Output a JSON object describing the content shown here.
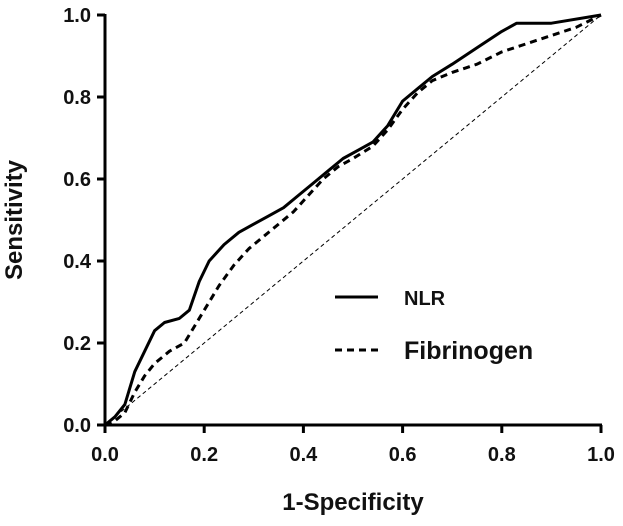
{
  "chart_data": {
    "type": "line",
    "title": "",
    "xlabel": "1-Specificity",
    "ylabel": "Sensitivity",
    "xlim": [
      0,
      1
    ],
    "ylim": [
      0,
      1
    ],
    "x_ticks": [
      "0.0",
      "0.2",
      "0.4",
      "0.6",
      "0.8",
      "1.0"
    ],
    "y_ticks": [
      "0.0",
      "0.2",
      "0.4",
      "0.6",
      "0.8",
      "1.0"
    ],
    "grid": false,
    "legend_position": "lower-right",
    "reference_line": {
      "style": "dashed-thin",
      "x": [
        0,
        1
      ],
      "y": [
        0,
        1
      ]
    },
    "series": [
      {
        "name": "NLR",
        "style": "solid",
        "color": "#000000",
        "x": [
          0,
          0.02,
          0.04,
          0.06,
          0.08,
          0.1,
          0.12,
          0.15,
          0.17,
          0.19,
          0.21,
          0.24,
          0.27,
          0.3,
          0.33,
          0.36,
          0.39,
          0.42,
          0.45,
          0.48,
          0.51,
          0.54,
          0.57,
          0.6,
          0.63,
          0.66,
          0.7,
          0.75,
          0.8,
          0.83,
          0.9,
          1.0
        ],
        "y": [
          0,
          0.02,
          0.05,
          0.13,
          0.18,
          0.23,
          0.25,
          0.26,
          0.28,
          0.35,
          0.4,
          0.44,
          0.47,
          0.49,
          0.51,
          0.53,
          0.56,
          0.59,
          0.62,
          0.65,
          0.67,
          0.69,
          0.73,
          0.79,
          0.82,
          0.85,
          0.88,
          0.92,
          0.96,
          0.98,
          0.98,
          1.0
        ]
      },
      {
        "name": "Fibrinogen",
        "style": "dashed",
        "color": "#000000",
        "x": [
          0,
          0.02,
          0.04,
          0.06,
          0.08,
          0.1,
          0.13,
          0.16,
          0.18,
          0.2,
          0.23,
          0.26,
          0.29,
          0.32,
          0.35,
          0.38,
          0.41,
          0.44,
          0.47,
          0.5,
          0.54,
          0.57,
          0.6,
          0.63,
          0.66,
          0.7,
          0.75,
          0.8,
          0.85,
          0.9,
          0.95,
          1.0
        ],
        "y": [
          0,
          0.01,
          0.03,
          0.08,
          0.12,
          0.15,
          0.18,
          0.2,
          0.24,
          0.28,
          0.34,
          0.39,
          0.43,
          0.46,
          0.49,
          0.52,
          0.56,
          0.6,
          0.63,
          0.65,
          0.68,
          0.72,
          0.77,
          0.81,
          0.84,
          0.86,
          0.88,
          0.91,
          0.93,
          0.95,
          0.97,
          1.0
        ]
      }
    ]
  }
}
